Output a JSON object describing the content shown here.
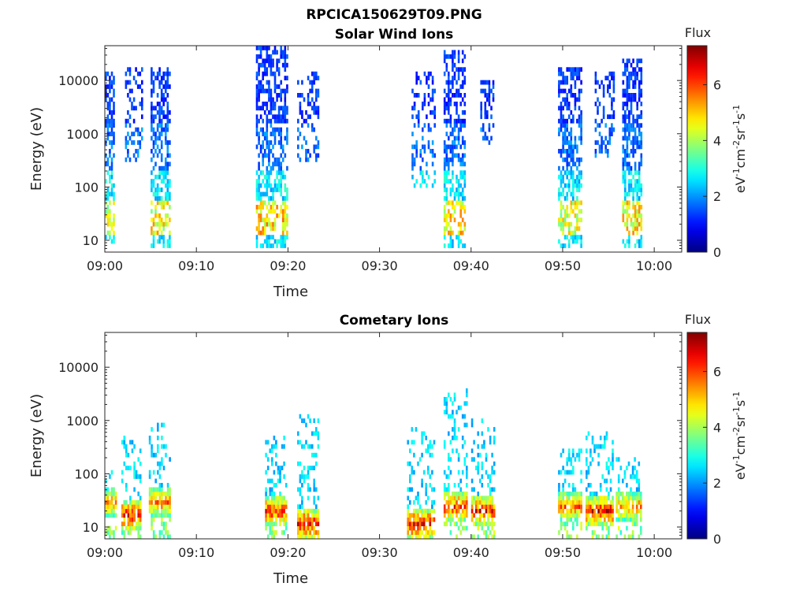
{
  "figure_title": "RPCICA150629T09.PNG",
  "chart_data": [
    {
      "type": "heatmap",
      "title": "Solar Wind Ions",
      "xlabel": "Time",
      "ylabel": "Energy (eV)",
      "y_scale": "log",
      "ylim": [
        6,
        45000
      ],
      "xlim_minutes_after_0900": [
        0,
        63
      ],
      "x_tick_labels": [
        "09:00",
        "09:10",
        "09:20",
        "09:30",
        "09:40",
        "09:50",
        "10:00"
      ],
      "y_tick_labels": [
        "10",
        "100",
        "1000",
        "10000"
      ],
      "colorbar": {
        "title": "Flux",
        "label": "eV-1cm-2sr-1s-1",
        "label_display": {
          "base": "eV",
          "sup1": "-1",
          "mid1": "cm",
          "sup2": "-2",
          "mid2": "sr",
          "sup3": "-1",
          "mid3": "s",
          "sup4": "-1"
        },
        "range": [
          0,
          7.4
        ],
        "tick_labels": [
          "0",
          "2",
          "4",
          "6"
        ]
      },
      "bursts": [
        {
          "start_min": 0.0,
          "end_min": 1.0,
          "low_energy_flux": 4.8,
          "sw_min_energy": 10,
          "sw_max_energy": 13000
        },
        {
          "start_min": 2.2,
          "end_min": 4.0,
          "low_energy_flux": 0,
          "sw_min_energy": 300,
          "sw_max_energy": 15000
        },
        {
          "start_min": 5.0,
          "end_min": 7.0,
          "low_energy_flux": 5.2,
          "sw_min_energy": 8,
          "sw_max_energy": 17000
        },
        {
          "start_min": 16.5,
          "end_min": 19.8,
          "low_energy_flux": 5.5,
          "sw_min_energy": 8,
          "sw_max_energy": 40000
        },
        {
          "start_min": 21.0,
          "end_min": 23.3,
          "low_energy_flux": 0,
          "sw_min_energy": 300,
          "sw_max_energy": 14000
        },
        {
          "start_min": 33.5,
          "end_min": 36.0,
          "low_energy_flux": 0,
          "sw_min_energy": 100,
          "sw_max_energy": 13000
        },
        {
          "start_min": 37.0,
          "end_min": 39.2,
          "low_energy_flux": 5.4,
          "sw_min_energy": 8,
          "sw_max_energy": 35000
        },
        {
          "start_min": 41.0,
          "end_min": 42.5,
          "low_energy_flux": 0,
          "sw_min_energy": 700,
          "sw_max_energy": 9000
        },
        {
          "start_min": 49.5,
          "end_min": 52.0,
          "low_energy_flux": 5.0,
          "sw_min_energy": 8,
          "sw_max_energy": 15000
        },
        {
          "start_min": 53.5,
          "end_min": 55.5,
          "low_energy_flux": 0,
          "sw_min_energy": 400,
          "sw_max_energy": 14000
        },
        {
          "start_min": 56.5,
          "end_min": 58.5,
          "low_energy_flux": 5.3,
          "sw_min_energy": 8,
          "sw_max_energy": 22000
        }
      ]
    },
    {
      "type": "heatmap",
      "title": "Cometary Ions",
      "xlabel": "Time",
      "ylabel": "Energy (eV)",
      "y_scale": "log",
      "ylim": [
        6,
        45000
      ],
      "xlim_minutes_after_0900": [
        0,
        63
      ],
      "x_tick_labels": [
        "09:00",
        "09:10",
        "09:20",
        "09:30",
        "09:40",
        "09:50",
        "10:00"
      ],
      "y_tick_labels": [
        "10",
        "100",
        "1000",
        "10000"
      ],
      "colorbar": {
        "title": "Flux",
        "label": "eV-1cm-2sr-1s-1",
        "label_display": {
          "base": "eV",
          "sup1": "-1",
          "mid1": "cm",
          "sup2": "-2",
          "mid2": "sr",
          "sup3": "-1",
          "mid3": "s",
          "sup4": "-1"
        },
        "range": [
          0,
          7.4
        ],
        "tick_labels": [
          "0",
          "2",
          "4",
          "6"
        ]
      },
      "bursts": [
        {
          "start_min": 0.0,
          "end_min": 1.2,
          "peak_flux": 5.8,
          "core_energy": 30,
          "max_energy": 100
        },
        {
          "start_min": 1.8,
          "end_min": 3.8,
          "peak_flux": 7.0,
          "core_energy": 18,
          "max_energy": 500
        },
        {
          "start_min": 4.8,
          "end_min": 7.0,
          "peak_flux": 6.2,
          "core_energy": 30,
          "max_energy": 900
        },
        {
          "start_min": 17.5,
          "end_min": 19.8,
          "peak_flux": 6.8,
          "core_energy": 22,
          "max_energy": 500
        },
        {
          "start_min": 21.0,
          "end_min": 23.2,
          "peak_flux": 7.2,
          "core_energy": 12,
          "max_energy": 1200
        },
        {
          "start_min": 33.0,
          "end_min": 36.0,
          "peak_flux": 7.2,
          "core_energy": 12,
          "max_energy": 700
        },
        {
          "start_min": 37.0,
          "end_min": 39.5,
          "peak_flux": 6.7,
          "core_energy": 25,
          "max_energy": 3800
        },
        {
          "start_min": 40.0,
          "end_min": 42.5,
          "peak_flux": 6.9,
          "core_energy": 22,
          "max_energy": 1000
        },
        {
          "start_min": 49.5,
          "end_min": 52.0,
          "peak_flux": 6.2,
          "core_energy": 25,
          "max_energy": 250
        },
        {
          "start_min": 52.5,
          "end_min": 55.5,
          "peak_flux": 7.1,
          "core_energy": 22,
          "max_energy": 550
        },
        {
          "start_min": 55.8,
          "end_min": 58.5,
          "peak_flux": 6.0,
          "core_energy": 25,
          "max_energy": 200
        }
      ]
    }
  ]
}
